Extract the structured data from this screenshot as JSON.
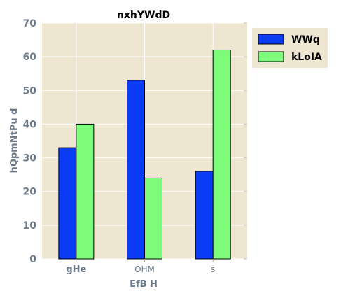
{
  "chart_data": {
    "type": "bar",
    "title": "nxhYWdD",
    "xlabel": "EfB H",
    "ylabel": "hQpmNtPu d",
    "categories": [
      "gHe",
      "OHM",
      "s"
    ],
    "series": [
      {
        "name": "WWq",
        "values": [
          33,
          53,
          26
        ],
        "color": "#0a3cf5"
      },
      {
        "name": "kLoIA",
        "values": [
          40,
          24,
          62
        ],
        "color": "#7cfc7a"
      }
    ],
    "ylim": [
      0,
      70
    ],
    "yticks": [
      0,
      10,
      20,
      30,
      40,
      50,
      60,
      70
    ],
    "grid": true,
    "legend_position": "top-right",
    "background": "#efe6d2"
  }
}
